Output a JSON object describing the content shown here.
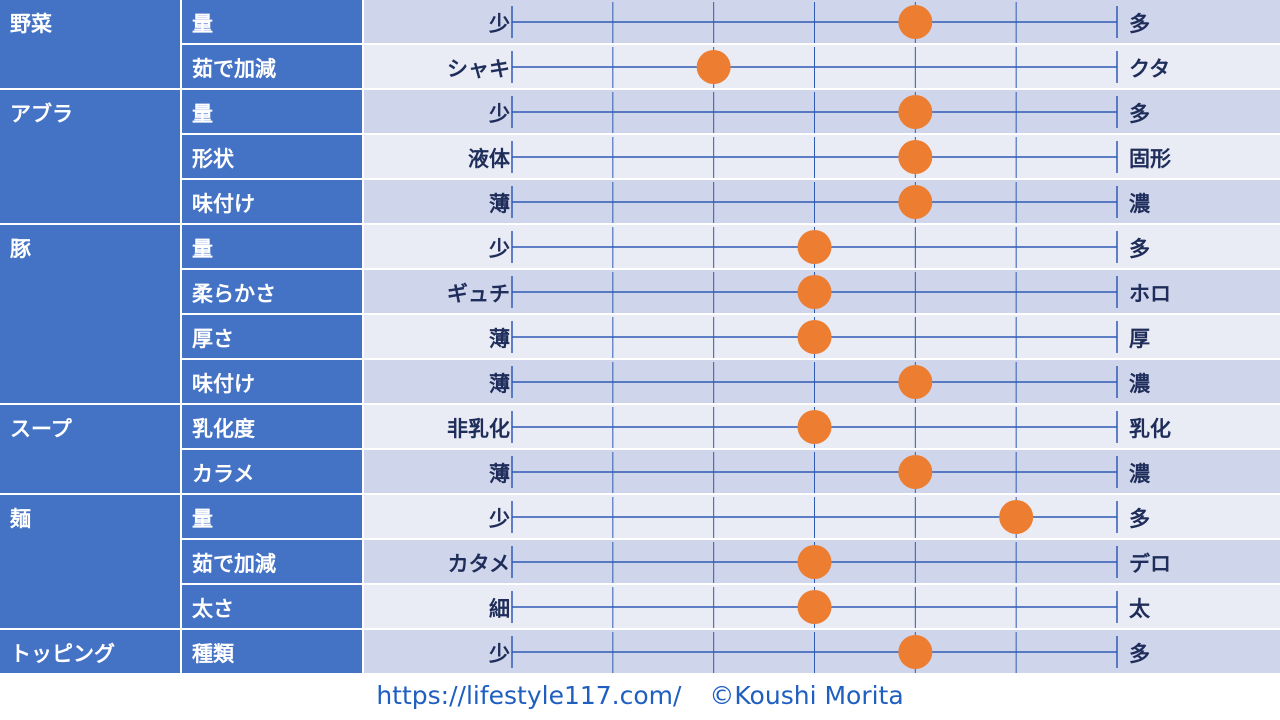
{
  "categories": [
    {
      "name": "野菜",
      "items": [
        {
          "label": "量",
          "left": "少",
          "right": "多",
          "level": 4
        },
        {
          "label": "茹で加減",
          "left": "シャキ",
          "right": "クタ",
          "level": 2
        }
      ]
    },
    {
      "name": "アブラ",
      "items": [
        {
          "label": "量",
          "left": "少",
          "right": "多",
          "level": 4
        },
        {
          "label": "形状",
          "left": "液体",
          "right": "固形",
          "level": 4
        },
        {
          "label": "味付け",
          "left": "薄",
          "right": "濃",
          "level": 4
        }
      ]
    },
    {
      "name": "豚",
      "items": [
        {
          "label": "量",
          "left": "少",
          "right": "多",
          "level": 3
        },
        {
          "label": "柔らかさ",
          "left": "ギュチ",
          "right": "ホロ",
          "level": 3
        },
        {
          "label": "厚さ",
          "left": "薄",
          "right": "厚",
          "level": 3
        },
        {
          "label": "味付け",
          "left": "薄",
          "right": "濃",
          "level": 4
        }
      ]
    },
    {
      "name": "スープ",
      "items": [
        {
          "label": "乳化度",
          "left": "非乳化",
          "right": "乳化",
          "level": 3
        },
        {
          "label": "カラメ",
          "left": "薄",
          "right": "濃",
          "level": 4
        }
      ]
    },
    {
      "name": "麺",
      "items": [
        {
          "label": "量",
          "left": "少",
          "right": "多",
          "level": 5
        },
        {
          "label": "茹で加減",
          "left": "カタメ",
          "right": "デロ",
          "level": 3
        },
        {
          "label": "太さ",
          "left": "細",
          "right": "太",
          "level": 3
        }
      ]
    },
    {
      "name": "トッピング",
      "items": [
        {
          "label": "種類",
          "left": "少",
          "right": "多",
          "level": 4
        }
      ]
    }
  ],
  "scale": {
    "steps": 6
  },
  "colors": {
    "header_bg": "#4472c4",
    "row_dark": "#cfd5ea",
    "row_light": "#e9ebf5",
    "line": "#2f5bb5",
    "dot": "#ed7d31"
  },
  "footer": {
    "url": "https://lifestyle117.com/",
    "credit": "©Koushi Morita"
  }
}
